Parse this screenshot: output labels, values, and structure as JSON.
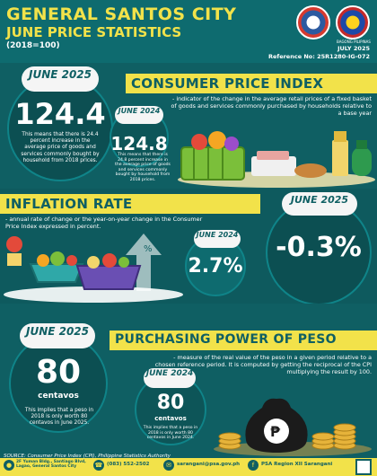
{
  "header": {
    "title": "GENERAL SANTOS CITY",
    "subtitle": "JUNE PRICE STATISTICS",
    "base": "(2018=100)",
    "date": "JULY 2025",
    "reference": "Reference No: 25R1280-IG-072",
    "logo_caption": "BAGONG PILIPINAS"
  },
  "cpi": {
    "title": "CONSUMER PRICE INDEX",
    "description": "- indicator of the change in the average retail prices of a fixed basket of goods and services commonly purchased by households relative to a base year",
    "current_label": "JUNE 2025",
    "current_value": "124.4",
    "current_note": "This means that there is 24.4 percent increase in the average price of goods and services commonly bought by household from 2018 prices.",
    "prev_label": "JUNE 2024",
    "prev_value": "124.8",
    "prev_note": "This means that there is 24.8 percent increase in the average price of goods and services commonly bought by household from 2018 prices."
  },
  "inflation": {
    "title": "INFLATION RATE",
    "description": "- annual rate of change or the year-on-year change in the Consumer Price Index expressed in percent.",
    "prev_label": "JUNE 2024",
    "prev_value": "2.7%",
    "current_label": "JUNE 2025",
    "current_value": "-0.3%"
  },
  "ppp": {
    "title": "PURCHASING POWER OF PESO",
    "description": "- measure of the real value of the peso in a given period relative to a chosen reference period. It is computed by getting the reciprocal of the CPI multiplying the result by 100.",
    "current_label": "JUNE 2025",
    "current_value": "80",
    "current_unit": "centavos",
    "current_note": "This implies that a peso in 2018 is only worth 80 centavos in June 2025.",
    "prev_label": "JUNE 2024",
    "prev_value": "80",
    "prev_unit": "centavos",
    "prev_note": "This implies that a peso in 2018 is only worth 80 centavos in June 2024."
  },
  "footer": {
    "source": "SOURCE: Consumer Price Index (CPI), Philippine Statistics Authority",
    "address": "2F Yuman Bldg., Santiago Blvd, Lagao, General Santos City",
    "phone": "(083) 552-2502",
    "email": "sarangani@psa.gov.ph",
    "facebook": "PSA Region XII Sarangani"
  },
  "colors": {
    "teal": "#0f5f63",
    "yellow": "#f2e24a",
    "white": "#ffffff"
  }
}
